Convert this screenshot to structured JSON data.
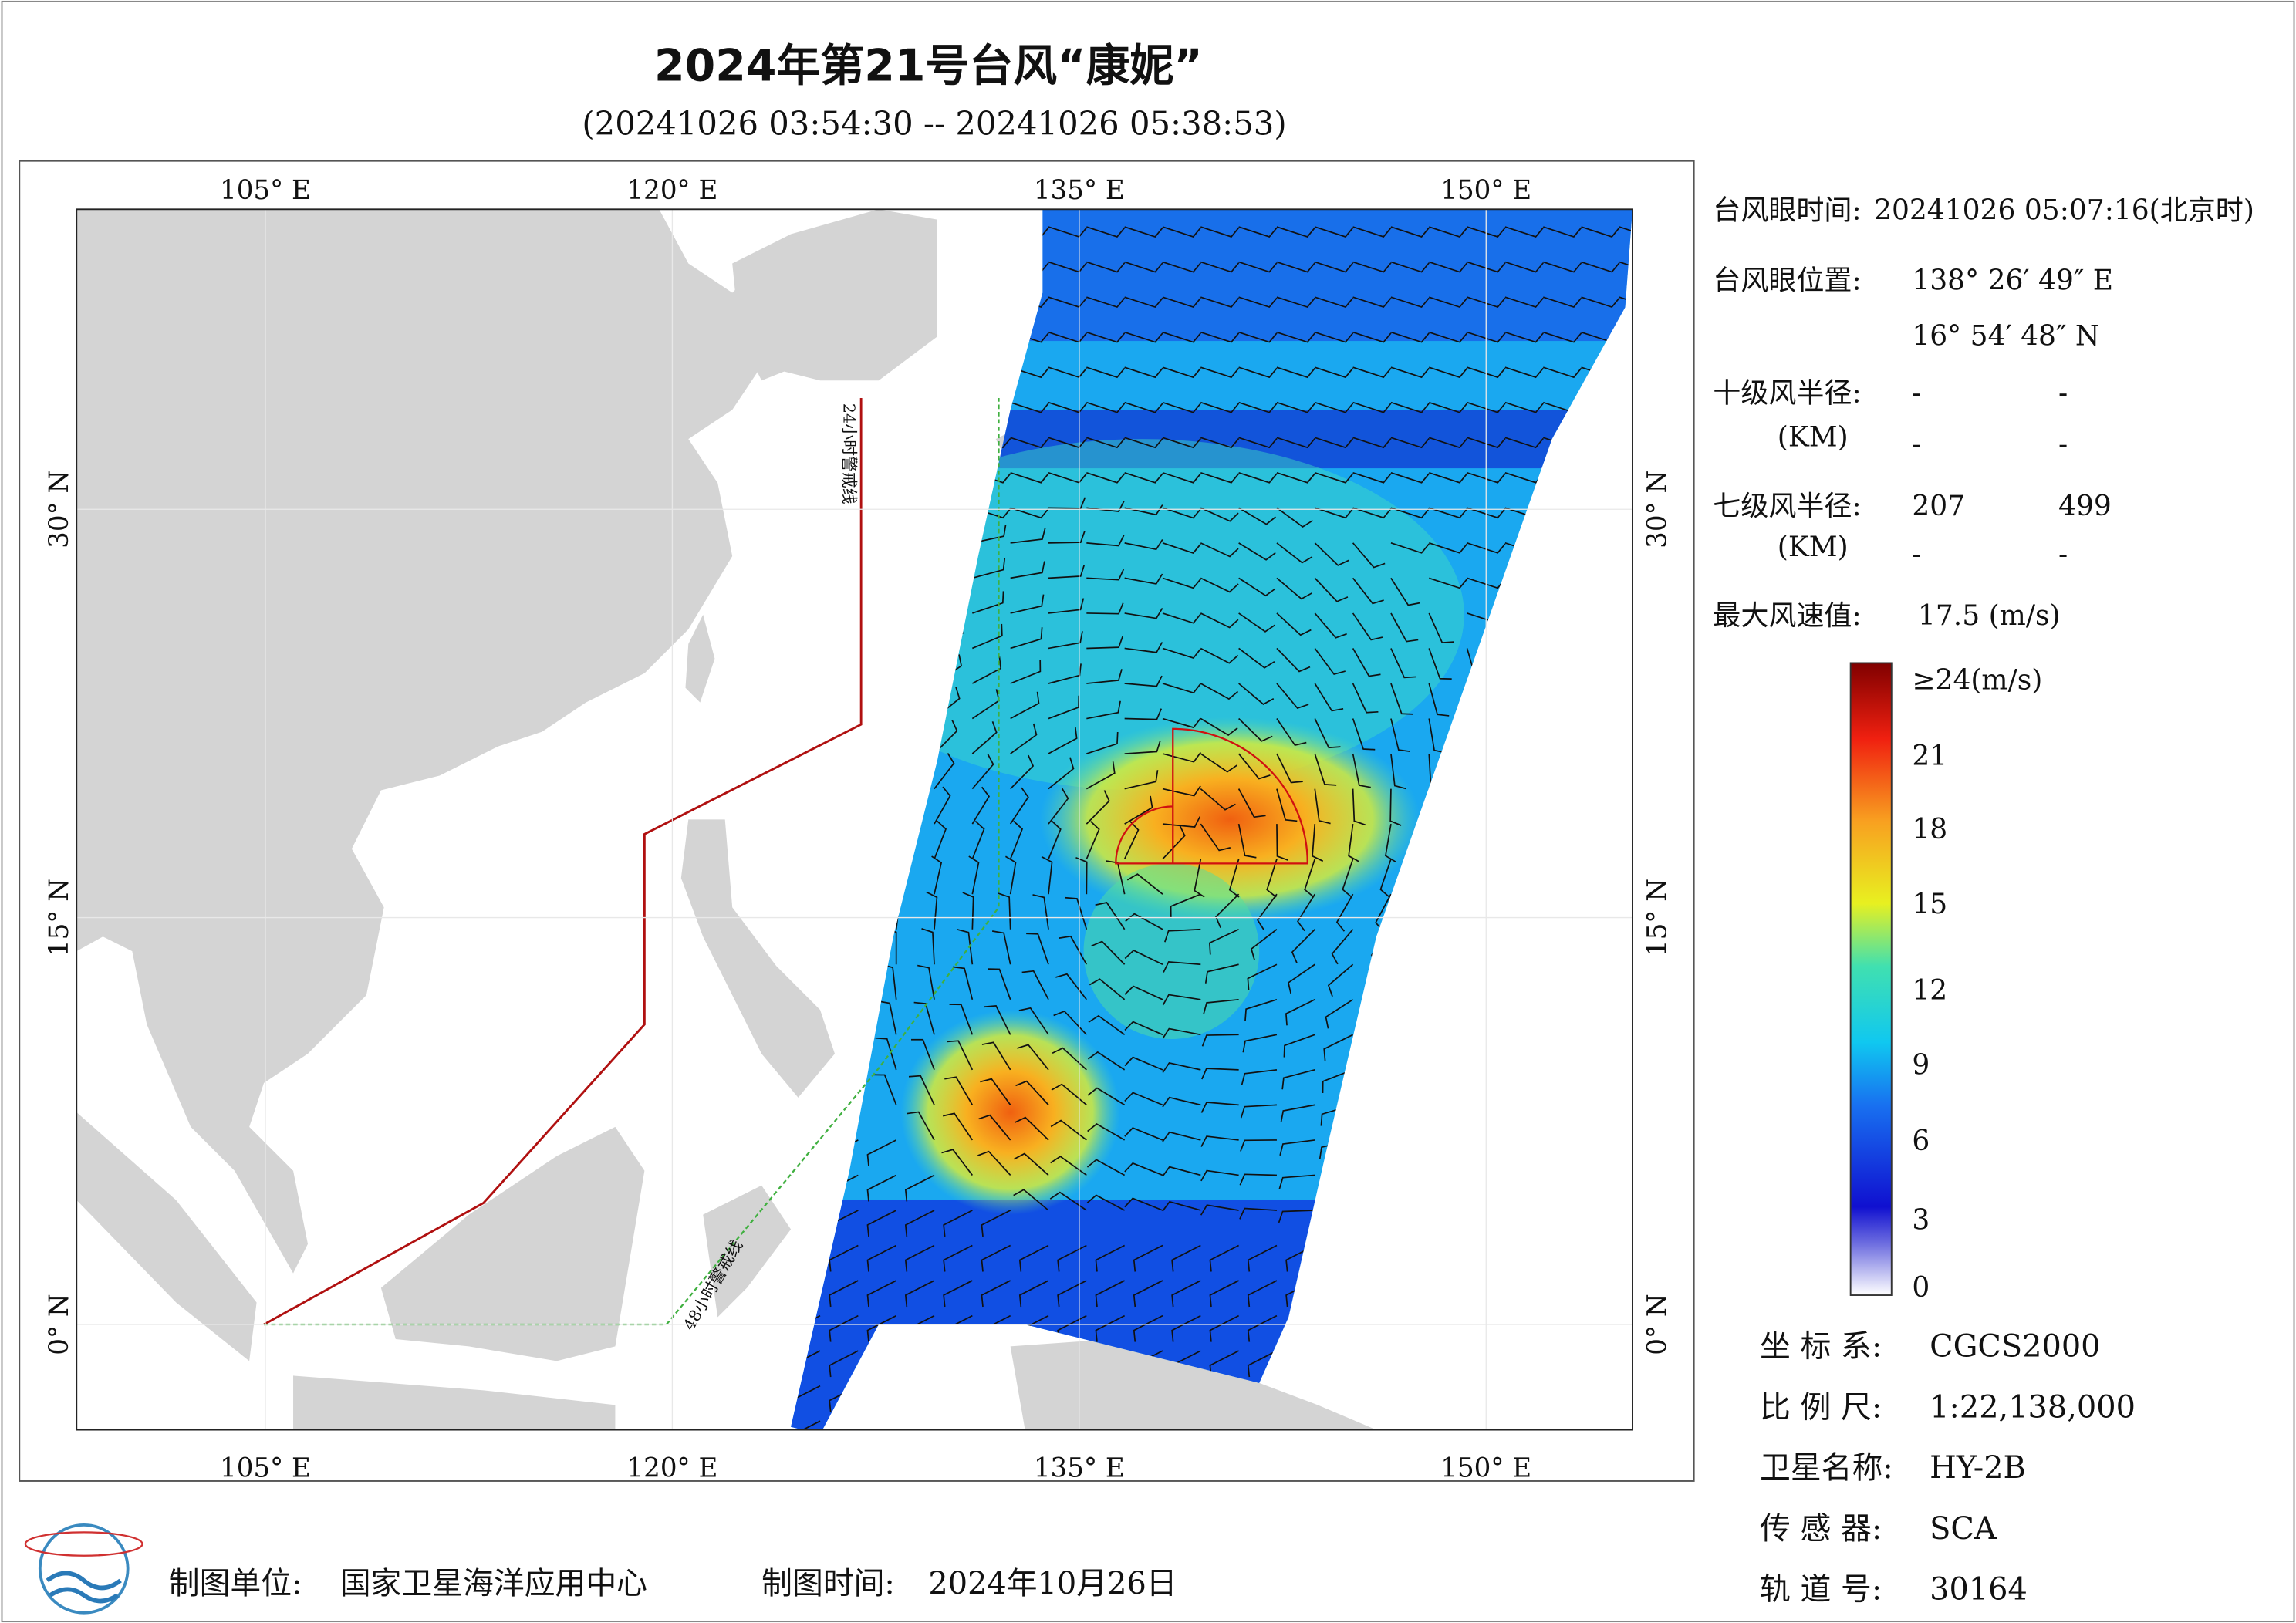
{
  "header": {
    "title": "2024年第21号台风“康妮”",
    "subtitle": "(20241026 03:54:30 -- 20241026 05:38:53)"
  },
  "map": {
    "lon_labels": [
      "105° E",
      "120° E",
      "135° E",
      "150° E"
    ],
    "lat_labels": [
      "30° N",
      "15° N",
      "0° N"
    ],
    "warning_lines": [
      "24小时警戒线",
      "48小时警戒线"
    ]
  },
  "info": {
    "eye_time": {
      "label": "台风眼时间:",
      "value": "20241026 05:07:16(北京时)"
    },
    "eye_position": {
      "label": "台风眼位置:",
      "lon": "138° 26′ 49″ E",
      "lat": "16° 54′ 48″ N"
    },
    "radius_10": {
      "label": "十级风半径:",
      "unit": "(KM)",
      "values": [
        "-",
        "-",
        "-",
        "-"
      ]
    },
    "radius_7": {
      "label": "七级风半径:",
      "unit": "(KM)",
      "values": [
        "207",
        "499",
        "-",
        "-"
      ]
    },
    "max_wind": {
      "label": "最大风速值:",
      "value": "17.5 (m/s)"
    }
  },
  "colorbar": {
    "labels": [
      "≥24(m/s)",
      "21",
      "18",
      "15",
      "12",
      "9",
      "6",
      "3",
      "0"
    ]
  },
  "meta": [
    {
      "label": "坐 标 系:",
      "value": "CGCS2000"
    },
    {
      "label": "比 例 尺:",
      "value": "1:22,138,000"
    },
    {
      "label": "卫星名称:",
      "value": "HY-2B"
    },
    {
      "label": "传 感 器:",
      "value": "SCA"
    },
    {
      "label": "轨 道 号:",
      "value": "30164"
    }
  ],
  "footer": {
    "unit_label": "制图单位:",
    "unit": "国家卫星海洋应用中心",
    "time_label": "制图时间:",
    "time": "2024年10月26日"
  }
}
